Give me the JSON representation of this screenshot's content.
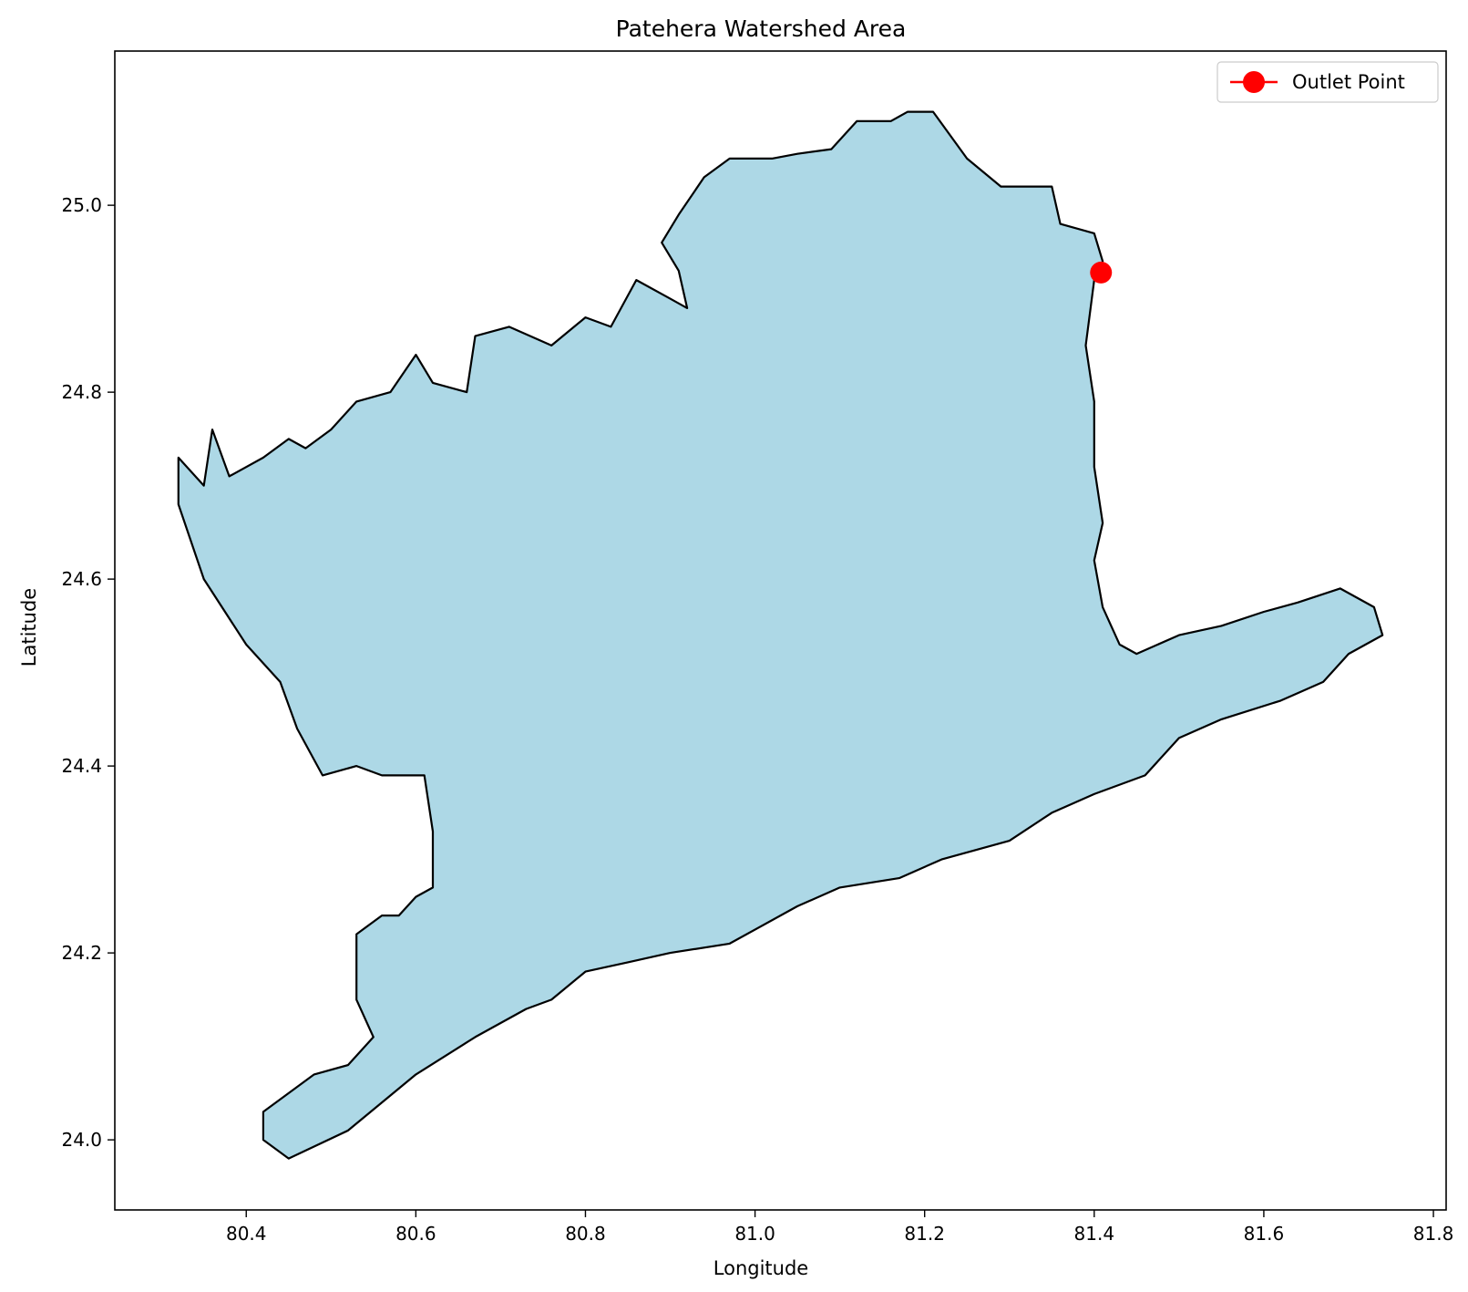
{
  "chart_data": {
    "type": "map",
    "title": "Patehera Watershed Area",
    "xlabel": "Longitude",
    "ylabel": "Latitude",
    "xlim": [
      80.245,
      81.815
    ],
    "ylim": [
      23.925,
      25.165
    ],
    "xticks": [
      80.4,
      80.6,
      80.8,
      81.0,
      81.2,
      81.4,
      81.6,
      81.8
    ],
    "xtick_labels": [
      "80.4",
      "80.6",
      "80.8",
      "81.0",
      "81.2",
      "81.4",
      "81.6",
      "81.8"
    ],
    "yticks": [
      24.0,
      24.2,
      24.4,
      24.6,
      24.8,
      25.0
    ],
    "ytick_labels": [
      "24.0",
      "24.2",
      "24.4",
      "24.6",
      "24.8",
      "25.0"
    ],
    "watershed": {
      "fill_color": "#add8e6",
      "edge_color": "#000000",
      "boundary": [
        [
          80.45,
          23.98
        ],
        [
          80.52,
          24.01
        ],
        [
          80.6,
          24.07
        ],
        [
          80.67,
          24.11
        ],
        [
          80.73,
          24.14
        ],
        [
          80.76,
          24.15
        ],
        [
          80.8,
          24.18
        ],
        [
          80.85,
          24.19
        ],
        [
          80.9,
          24.2
        ],
        [
          80.97,
          24.21
        ],
        [
          81.05,
          24.25
        ],
        [
          81.1,
          24.27
        ],
        [
          81.17,
          24.28
        ],
        [
          81.22,
          24.3
        ],
        [
          81.3,
          24.32
        ],
        [
          81.35,
          24.35
        ],
        [
          81.4,
          24.37
        ],
        [
          81.46,
          24.39
        ],
        [
          81.5,
          24.43
        ],
        [
          81.55,
          24.45
        ],
        [
          81.62,
          24.47
        ],
        [
          81.67,
          24.49
        ],
        [
          81.7,
          24.52
        ],
        [
          81.74,
          24.54
        ],
        [
          81.73,
          24.57
        ],
        [
          81.69,
          24.59
        ],
        [
          81.64,
          24.575
        ],
        [
          81.6,
          24.565
        ],
        [
          81.55,
          24.55
        ],
        [
          81.5,
          24.54
        ],
        [
          81.45,
          24.52
        ],
        [
          81.43,
          24.53
        ],
        [
          81.41,
          24.57
        ],
        [
          81.4,
          24.62
        ],
        [
          81.41,
          24.66
        ],
        [
          81.4,
          24.72
        ],
        [
          81.4,
          24.79
        ],
        [
          81.39,
          24.85
        ],
        [
          81.4,
          24.92
        ],
        [
          81.41,
          24.94
        ],
        [
          81.4,
          24.97
        ],
        [
          81.36,
          24.98
        ],
        [
          81.35,
          25.02
        ],
        [
          81.29,
          25.02
        ],
        [
          81.25,
          25.05
        ],
        [
          81.21,
          25.1
        ],
        [
          81.18,
          25.1
        ],
        [
          81.16,
          25.09
        ],
        [
          81.12,
          25.09
        ],
        [
          81.09,
          25.06
        ],
        [
          81.05,
          25.055
        ],
        [
          81.02,
          25.05
        ],
        [
          80.97,
          25.05
        ],
        [
          80.94,
          25.03
        ],
        [
          80.91,
          24.99
        ],
        [
          80.89,
          24.96
        ],
        [
          80.91,
          24.93
        ],
        [
          80.92,
          24.89
        ],
        [
          80.9,
          24.9
        ],
        [
          80.86,
          24.92
        ],
        [
          80.83,
          24.87
        ],
        [
          80.8,
          24.88
        ],
        [
          80.76,
          24.85
        ],
        [
          80.71,
          24.87
        ],
        [
          80.67,
          24.86
        ],
        [
          80.66,
          24.8
        ],
        [
          80.62,
          24.81
        ],
        [
          80.6,
          24.84
        ],
        [
          80.57,
          24.8
        ],
        [
          80.53,
          24.79
        ],
        [
          80.5,
          24.76
        ],
        [
          80.47,
          24.74
        ],
        [
          80.45,
          24.75
        ],
        [
          80.42,
          24.73
        ],
        [
          80.38,
          24.71
        ],
        [
          80.36,
          24.76
        ],
        [
          80.35,
          24.7
        ],
        [
          80.32,
          24.73
        ],
        [
          80.32,
          24.68
        ],
        [
          80.35,
          24.6
        ],
        [
          80.4,
          24.53
        ],
        [
          80.44,
          24.49
        ],
        [
          80.46,
          24.44
        ],
        [
          80.49,
          24.39
        ],
        [
          80.53,
          24.4
        ],
        [
          80.56,
          24.39
        ],
        [
          80.61,
          24.39
        ],
        [
          80.62,
          24.33
        ],
        [
          80.62,
          24.27
        ],
        [
          80.6,
          24.26
        ],
        [
          80.58,
          24.24
        ],
        [
          80.56,
          24.24
        ],
        [
          80.53,
          24.22
        ],
        [
          80.53,
          24.15
        ],
        [
          80.55,
          24.11
        ],
        [
          80.52,
          24.08
        ],
        [
          80.48,
          24.07
        ],
        [
          80.45,
          24.05
        ],
        [
          80.42,
          24.03
        ],
        [
          80.42,
          24.0
        ],
        [
          80.45,
          23.98
        ]
      ]
    },
    "outlet_point": {
      "lon": 81.408,
      "lat": 24.928,
      "color": "#ff0000"
    },
    "legend": {
      "placement": "top-right",
      "label": "Outlet Point"
    }
  }
}
